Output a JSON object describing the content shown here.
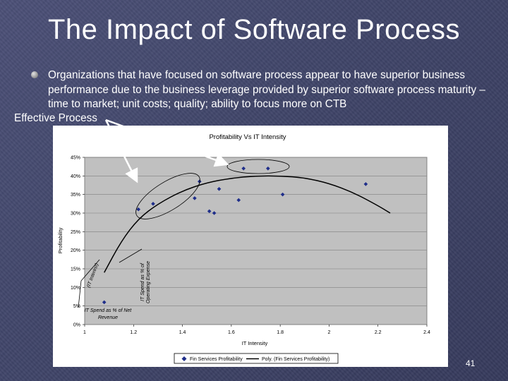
{
  "slide": {
    "title": "The Impact of Software Process",
    "bullet": "Organizations that have focused on software process appear to have superior business performance due to the business leverage provided by superior software process maturity – time to market; unit costs; quality; ability to focus more on CTB",
    "effective_process": "Effective Process",
    "page_number": "41",
    "bullet_icon": "round-bullet-icon",
    "colors": {
      "background": "#3f4468",
      "plot_area": "#c0c0c0",
      "marker": "#1f2e8a",
      "text": "#ffffff"
    }
  },
  "chart_data": {
    "type": "scatter",
    "title": "Profitability Vs IT Intensity",
    "xlabel": "IT Intensity",
    "ylabel": "Profitability",
    "xlim": [
      1,
      2.4
    ],
    "ylim": [
      0,
      0.45
    ],
    "x_ticks": [
      "1",
      "1.2",
      "1.4",
      "1.6",
      "1.8",
      "2",
      "2.2",
      "2.4"
    ],
    "y_ticks": [
      "0%",
      "5%",
      "10%",
      "15%",
      "20%",
      "25%",
      "30%",
      "35%",
      "40%",
      "45%"
    ],
    "grid": "horizontal",
    "legend_position": "bottom",
    "series": [
      {
        "name": "Fin Services Profitability",
        "points": [
          [
            1.08,
            0.06
          ],
          [
            1.22,
            0.31
          ],
          [
            1.28,
            0.325
          ],
          [
            1.45,
            0.34
          ],
          [
            1.47,
            0.385
          ],
          [
            1.51,
            0.305
          ],
          [
            1.53,
            0.3
          ],
          [
            1.55,
            0.365
          ],
          [
            1.63,
            0.335
          ],
          [
            1.65,
            0.42
          ],
          [
            1.75,
            0.42
          ],
          [
            1.81,
            0.35
          ],
          [
            2.15,
            0.378
          ]
        ]
      }
    ],
    "trendline": {
      "name": "Poly. (Fin Services Profitability)",
      "points": [
        [
          1.08,
          0.14
        ],
        [
          1.15,
          0.225
        ],
        [
          1.22,
          0.285
        ],
        [
          1.3,
          0.325
        ],
        [
          1.4,
          0.36
        ],
        [
          1.5,
          0.382
        ],
        [
          1.6,
          0.394
        ],
        [
          1.7,
          0.4
        ],
        [
          1.8,
          0.4
        ],
        [
          1.9,
          0.395
        ],
        [
          2.0,
          0.38
        ],
        [
          2.1,
          0.355
        ],
        [
          2.2,
          0.32
        ],
        [
          2.25,
          0.3
        ]
      ]
    },
    "annotations": {
      "it_spend_revenue": "IT Spend as % of Net Revenue",
      "it_interest": "(IT Interest)",
      "it_spend_operating": "IT Spend as % of Operating Expense"
    }
  }
}
